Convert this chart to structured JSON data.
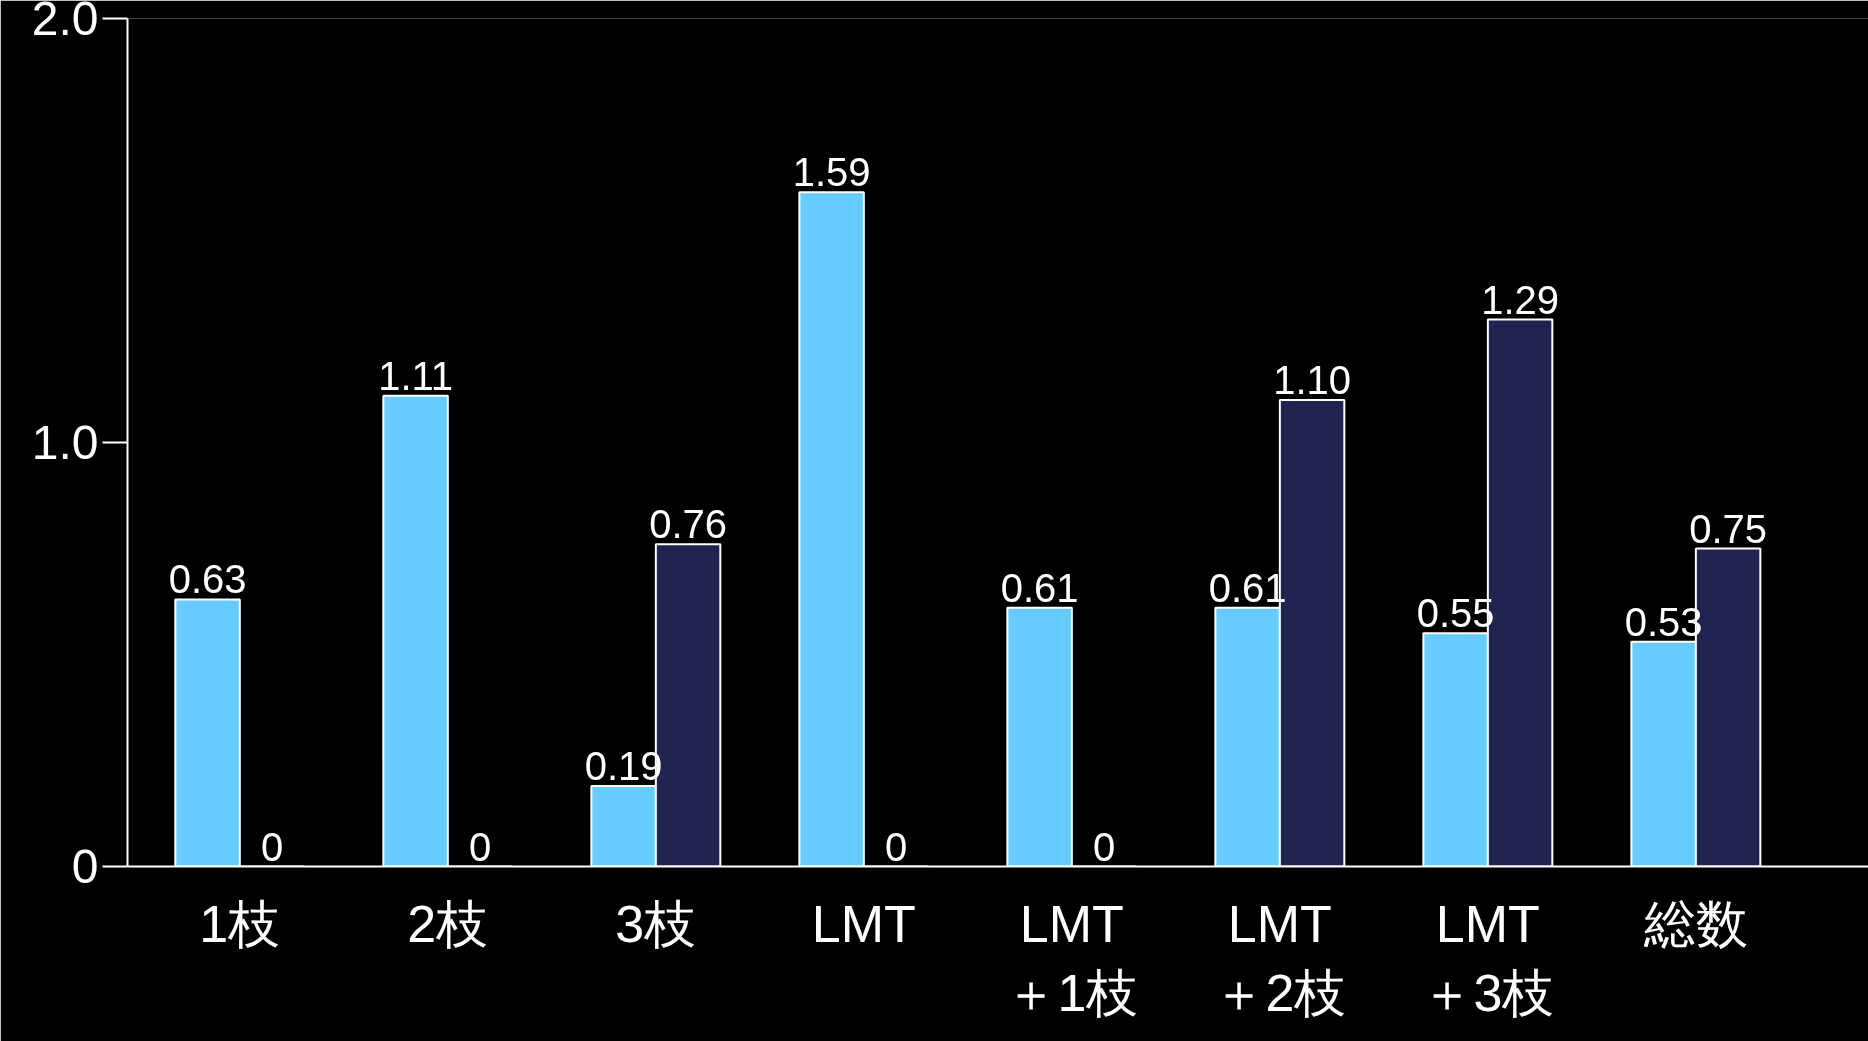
{
  "chart_data": {
    "type": "bar",
    "categories": [
      "1枝",
      "2枝",
      "3枝",
      "LMT",
      "LMT\n＋1枝",
      "LMT\n＋2枝",
      "LMT\n＋3枝",
      "総数"
    ],
    "series": [
      {
        "color": "#66ccff",
        "values": [
          0.63,
          1.11,
          0.19,
          1.59,
          0.61,
          0.61,
          0.55,
          0.53
        ],
        "value_labels": [
          "0.63",
          "1.11",
          "0.19",
          "1.59",
          "0.61",
          "0.61",
          "0.55",
          "0.53"
        ]
      },
      {
        "color": "#20224f",
        "values": [
          0,
          0,
          0.76,
          0,
          0,
          1.1,
          1.29,
          0.75
        ],
        "value_labels": [
          "0",
          "0",
          "0.76",
          "0",
          "0",
          "1.10",
          "1.29",
          "0.75"
        ]
      }
    ],
    "ylim": [
      0,
      2
    ],
    "yticks": [
      0,
      {
        "value": 1,
        "label": "1.0"
      },
      {
        "value": 2,
        "label": "2.0"
      }
    ]
  }
}
